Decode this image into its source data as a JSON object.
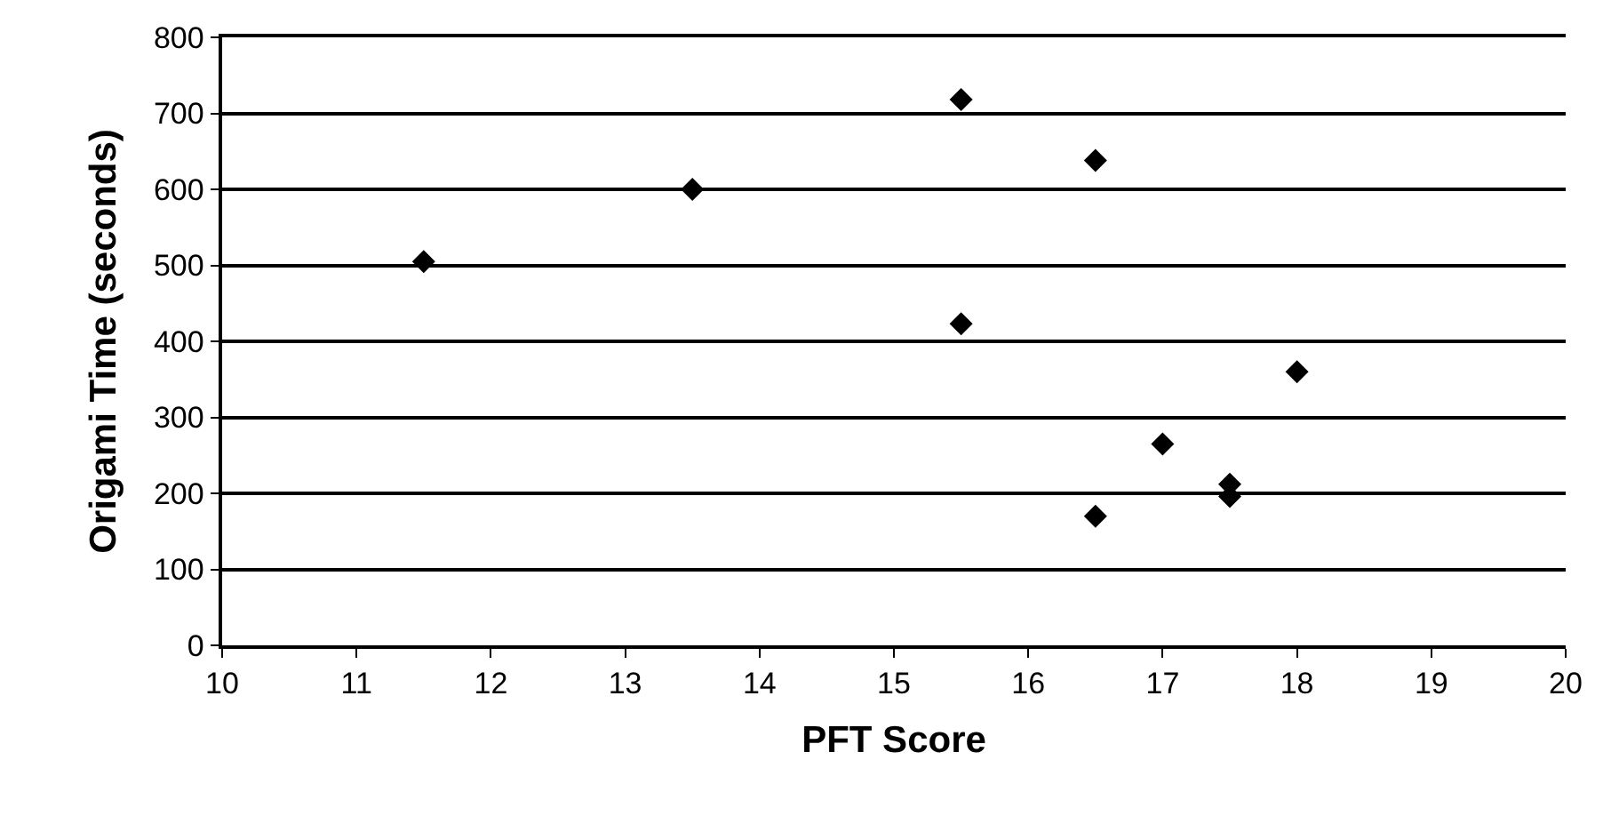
{
  "chart_data": {
    "type": "scatter",
    "xlabel": "PFT Score",
    "ylabel": "Origami Time (seconds)",
    "x": [
      11.5,
      13.5,
      15.5,
      16.5,
      15.5,
      18,
      17,
      17.5,
      17.5,
      16.5
    ],
    "series": [
      {
        "color": "#000000",
        "values": [
          505,
          600,
          718,
          638,
          423,
          360,
          265,
          212,
          196,
          170
        ]
      }
    ],
    "xlim": [
      10,
      20
    ],
    "xticks": [
      10,
      11,
      12,
      13,
      14,
      15,
      16,
      17,
      18,
      19,
      20
    ],
    "ylim": [
      0,
      800
    ],
    "yticks": [
      0,
      100,
      200,
      300,
      400,
      500,
      600,
      700,
      800
    ],
    "grid": "y",
    "marker": "diamond"
  }
}
